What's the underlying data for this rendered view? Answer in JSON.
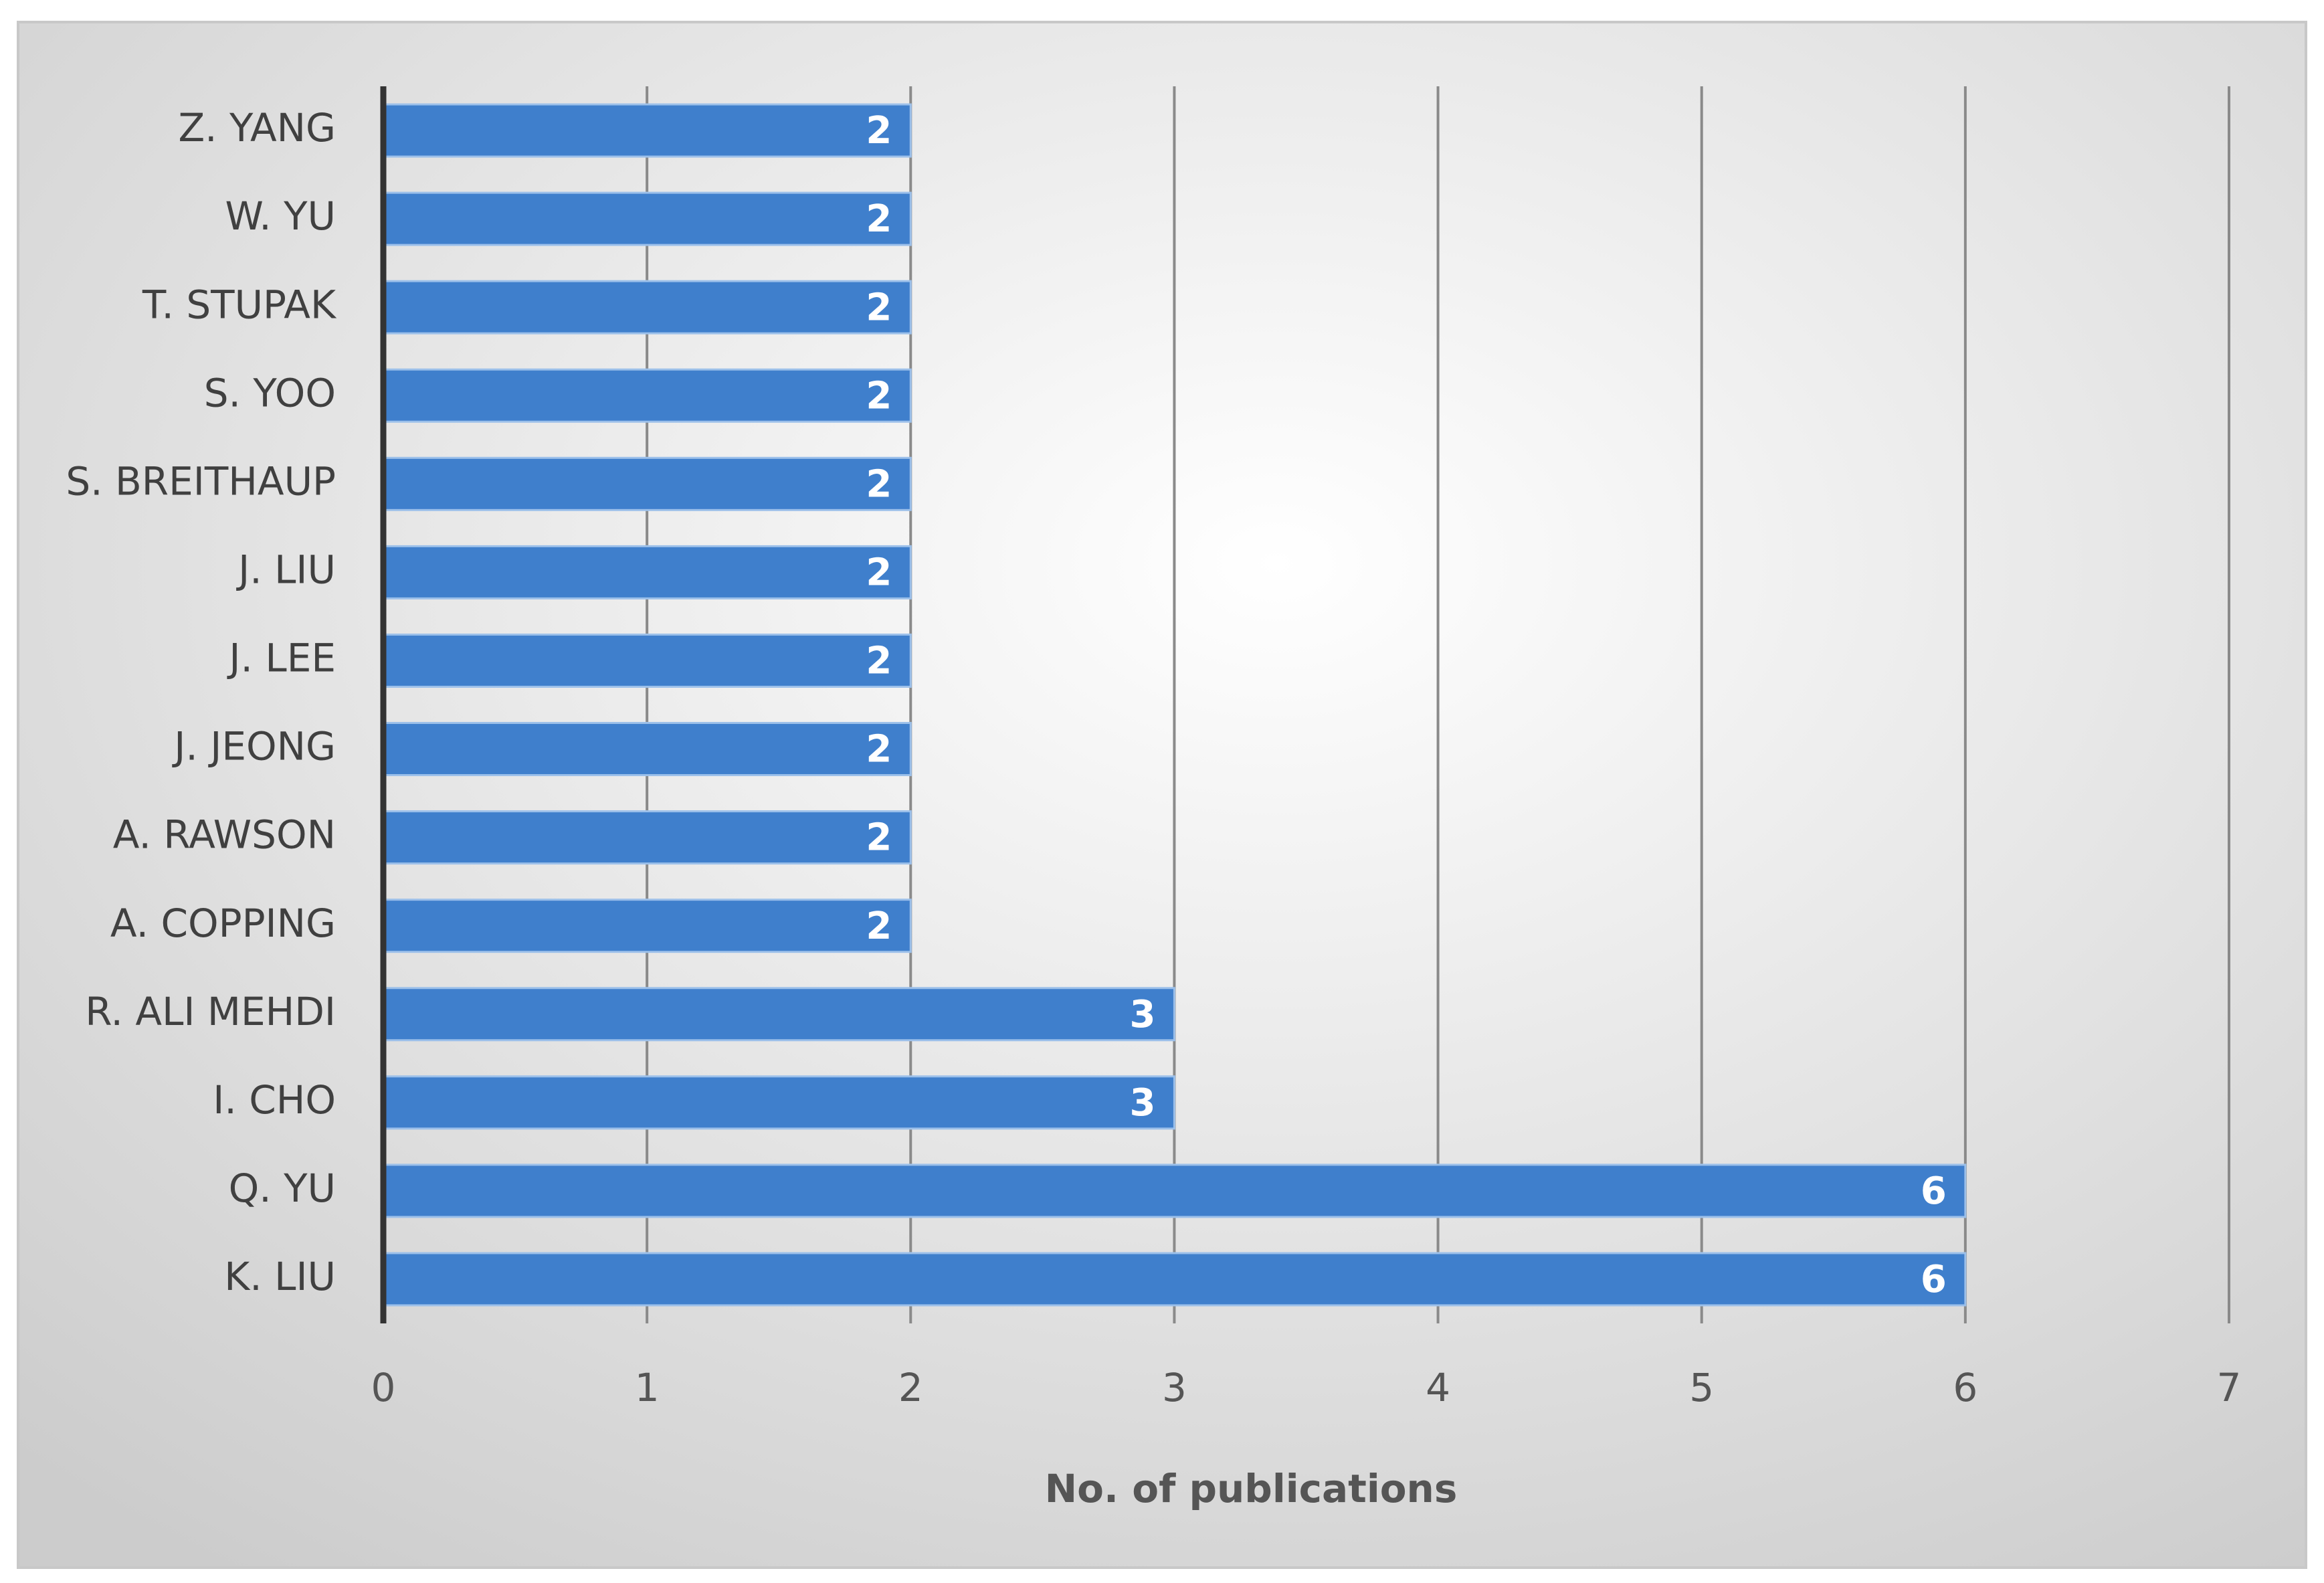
{
  "chart_data": {
    "type": "bar",
    "orientation": "horizontal",
    "x_label": "No. of publications",
    "categories": [
      "Z. YANG",
      "W. YU",
      "T. STUPAK",
      "S. YOO",
      "S. BREITHAUP",
      "J. LIU",
      "J. LEE",
      "J. JEONG",
      "A. RAWSON",
      "A. COPPING",
      "R. ALI MEHDI",
      "I. CHO",
      "Q. YU",
      "K. LIU"
    ],
    "values": [
      2,
      2,
      2,
      2,
      2,
      2,
      2,
      2,
      2,
      2,
      3,
      3,
      6,
      6
    ],
    "color": "#3f7fcc",
    "xlim": [
      0,
      7
    ],
    "xticks": [
      0,
      1,
      2,
      3,
      4,
      5,
      6,
      7
    ],
    "grid": true
  }
}
